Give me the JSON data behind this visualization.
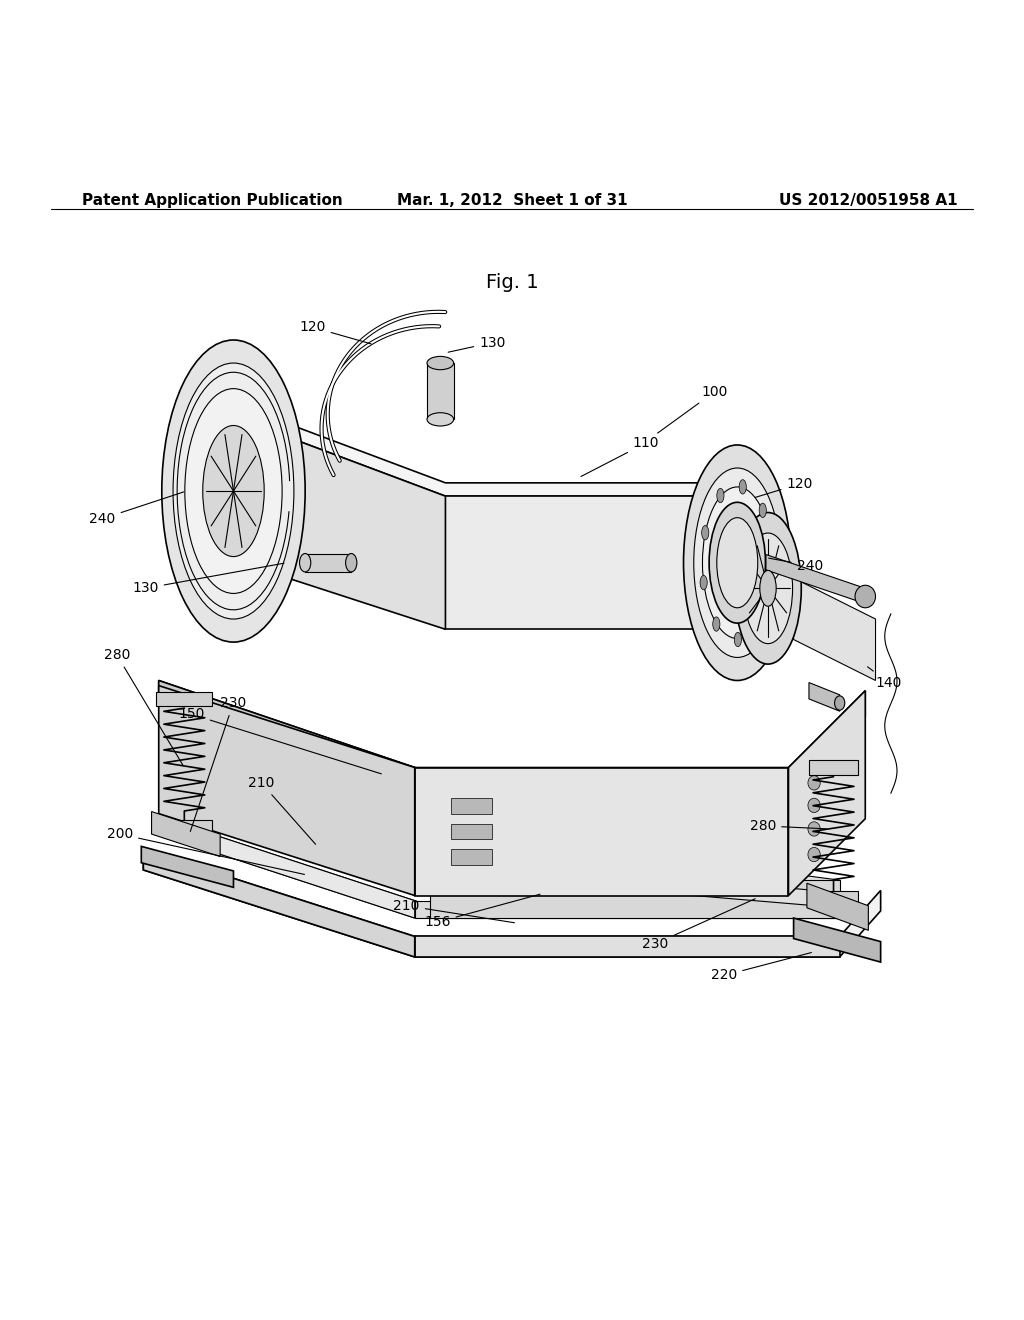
{
  "background_color": "#ffffff",
  "header_left": "Patent Application Publication",
  "header_center": "Mar. 1, 2012  Sheet 1 of 31",
  "header_right": "US 2012/0051958 A1",
  "fig_label": "Fig. 1",
  "line_color": "#000000",
  "text_color": "#000000",
  "font_size_header": 11,
  "font_size_label": 10,
  "font_size_fig": 14
}
